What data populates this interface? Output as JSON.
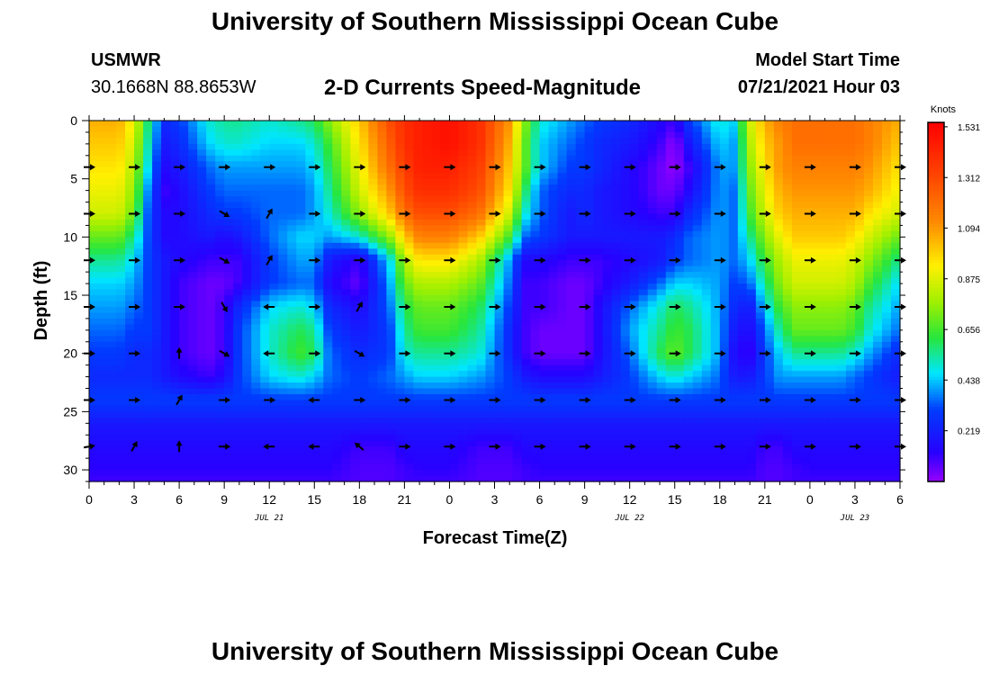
{
  "header": {
    "title": "University of Southern Mississippi Ocean Cube",
    "station": "USMWR",
    "coords": "30.1668N  88.8653W",
    "subtitle": "2-D Currents Speed-Magnitude",
    "model_start_label": "Model Start Time",
    "model_start_value": "07/21/2021 Hour 03"
  },
  "footer": {
    "title": "University of Southern Mississippi Ocean Cube"
  },
  "chart_data": {
    "type": "heatmap",
    "title": "2-D Currents Speed-Magnitude",
    "xlabel": "Forecast Time(Z)",
    "ylabel": "Depth (ft)",
    "x_ticks": [
      "0",
      "3",
      "6",
      "9",
      "12",
      "15",
      "18",
      "21",
      "0",
      "3",
      "6",
      "9",
      "12",
      "15",
      "18",
      "21",
      "0",
      "3",
      "6"
    ],
    "x_hours": [
      0,
      3,
      6,
      9,
      12,
      15,
      18,
      21,
      24,
      27,
      30,
      33,
      36,
      39,
      42,
      45,
      48,
      51,
      54
    ],
    "date_labels": [
      {
        "text": "JUL 21",
        "hour": 12
      },
      {
        "text": "JUL 22",
        "hour": 36
      },
      {
        "text": "JUL 23",
        "hour": 51
      }
    ],
    "y_ticks": [
      "0",
      "5",
      "10",
      "15",
      "20",
      "25",
      "30"
    ],
    "y_values": [
      0,
      5,
      10,
      15,
      20,
      25,
      30
    ],
    "xlim": [
      0,
      54
    ],
    "ylim": [
      0,
      31
    ],
    "colorbar": {
      "unit": "Knots",
      "min": 0.0,
      "max": 1.55,
      "ticks": [
        "1.531",
        "1.312",
        "1.094",
        "0.875",
        "0.656",
        "0.438",
        "0.219"
      ],
      "tick_values": [
        1.531,
        1.312,
        1.094,
        0.875,
        0.656,
        0.438,
        0.219
      ]
    },
    "arrow_rows_depth": [
      4,
      8,
      12,
      16,
      20,
      24,
      28
    ],
    "arrow_cols_hours": [
      0,
      3,
      6,
      9,
      12,
      15,
      18,
      21,
      24,
      27,
      30,
      33,
      36,
      39,
      42,
      45,
      48,
      51,
      54
    ],
    "arrow_directions_deg": [
      [
        0,
        0,
        0,
        0,
        0,
        0,
        0,
        0,
        0,
        0,
        0,
        0,
        0,
        0,
        0,
        0,
        0,
        0,
        0
      ],
      [
        0,
        0,
        0,
        30,
        -60,
        0,
        0,
        0,
        0,
        0,
        0,
        0,
        0,
        0,
        0,
        0,
        0,
        0,
        0
      ],
      [
        0,
        0,
        0,
        30,
        -60,
        0,
        0,
        0,
        0,
        0,
        0,
        0,
        0,
        0,
        0,
        0,
        0,
        0,
        0
      ],
      [
        0,
        0,
        0,
        60,
        180,
        0,
        -60,
        0,
        0,
        0,
        0,
        0,
        0,
        0,
        0,
        0,
        0,
        0,
        0
      ],
      [
        0,
        0,
        -90,
        30,
        180,
        0,
        30,
        0,
        0,
        0,
        0,
        0,
        0,
        0,
        0,
        0,
        0,
        0,
        0
      ],
      [
        0,
        0,
        -60,
        0,
        0,
        180,
        0,
        0,
        0,
        0,
        0,
        0,
        0,
        0,
        0,
        0,
        0,
        0,
        0
      ],
      [
        -10,
        -60,
        -90,
        0,
        180,
        180,
        220,
        0,
        0,
        0,
        0,
        0,
        0,
        0,
        0,
        0,
        0,
        0,
        0
      ]
    ],
    "speed_grid_knots": {
      "depths": [
        0,
        2,
        4,
        6,
        8,
        10,
        12,
        14,
        16,
        18,
        20,
        22,
        24,
        26,
        28,
        30,
        31
      ],
      "hours": [
        0,
        2,
        3,
        4,
        5,
        6,
        8,
        9,
        10,
        12,
        14,
        15,
        16,
        18,
        20,
        21,
        22,
        24,
        26,
        28,
        29,
        30,
        32,
        33,
        34,
        36,
        38,
        39,
        40,
        42,
        43,
        44,
        45,
        46,
        47,
        48,
        50,
        51,
        52,
        54
      ],
      "values": [
        [
          1.05,
          1.05,
          0.9,
          0.55,
          0.25,
          0.3,
          0.5,
          0.55,
          0.55,
          0.5,
          0.55,
          0.6,
          0.75,
          1.0,
          1.3,
          1.4,
          1.45,
          1.5,
          1.4,
          1.1,
          0.75,
          0.5,
          0.4,
          0.35,
          0.3,
          0.25,
          0.15,
          0.1,
          0.3,
          0.5,
          0.45,
          0.85,
          1.05,
          1.15,
          1.2,
          1.2,
          1.2,
          1.2,
          1.15,
          1.05
        ],
        [
          1.0,
          1.0,
          0.85,
          0.5,
          0.2,
          0.25,
          0.45,
          0.5,
          0.5,
          0.45,
          0.45,
          0.5,
          0.65,
          0.95,
          1.25,
          1.4,
          1.45,
          1.5,
          1.4,
          1.05,
          0.7,
          0.45,
          0.35,
          0.3,
          0.25,
          0.2,
          0.1,
          0.0,
          0.2,
          0.45,
          0.4,
          0.8,
          1.0,
          1.1,
          1.2,
          1.2,
          1.2,
          1.2,
          1.15,
          1.0
        ],
        [
          0.95,
          0.95,
          0.8,
          0.45,
          0.15,
          0.2,
          0.35,
          0.4,
          0.4,
          0.4,
          0.4,
          0.45,
          0.6,
          0.9,
          1.2,
          1.35,
          1.45,
          1.45,
          1.35,
          1.0,
          0.7,
          0.45,
          0.3,
          0.3,
          0.25,
          0.15,
          0.05,
          0.0,
          0.1,
          0.4,
          0.4,
          0.75,
          0.95,
          1.1,
          1.15,
          1.15,
          1.15,
          1.15,
          1.1,
          0.95
        ],
        [
          0.9,
          0.9,
          0.75,
          0.35,
          0.1,
          0.15,
          0.3,
          0.35,
          0.35,
          0.35,
          0.35,
          0.4,
          0.55,
          0.85,
          1.1,
          1.3,
          1.4,
          1.4,
          1.3,
          0.95,
          0.6,
          0.35,
          0.25,
          0.25,
          0.2,
          0.15,
          0.05,
          0.05,
          0.15,
          0.4,
          0.35,
          0.7,
          0.9,
          1.05,
          1.1,
          1.1,
          1.1,
          1.1,
          1.05,
          0.9
        ],
        [
          0.85,
          0.85,
          0.7,
          0.3,
          0.15,
          0.15,
          0.25,
          0.3,
          0.3,
          0.35,
          0.35,
          0.4,
          0.5,
          0.75,
          1.0,
          1.2,
          1.3,
          1.3,
          1.2,
          0.85,
          0.5,
          0.35,
          0.2,
          0.25,
          0.2,
          0.15,
          0.1,
          0.1,
          0.25,
          0.4,
          0.35,
          0.65,
          0.85,
          1.0,
          1.05,
          1.05,
          1.05,
          1.05,
          0.95,
          0.85
        ],
        [
          0.7,
          0.7,
          0.55,
          0.3,
          0.15,
          0.15,
          0.2,
          0.15,
          0.2,
          0.35,
          0.45,
          0.45,
          0.4,
          0.5,
          0.75,
          1.0,
          1.15,
          1.15,
          1.0,
          0.65,
          0.35,
          0.3,
          0.2,
          0.2,
          0.2,
          0.2,
          0.2,
          0.25,
          0.35,
          0.4,
          0.35,
          0.55,
          0.75,
          0.9,
          1.0,
          1.0,
          1.0,
          0.95,
          0.85,
          0.7
        ],
        [
          0.55,
          0.55,
          0.45,
          0.3,
          0.2,
          0.15,
          0.1,
          0.1,
          0.1,
          0.3,
          0.4,
          0.4,
          0.2,
          0.1,
          0.45,
          0.8,
          0.95,
          0.95,
          0.8,
          0.4,
          0.15,
          0.15,
          0.1,
          0.1,
          0.1,
          0.15,
          0.2,
          0.3,
          0.35,
          0.4,
          0.35,
          0.45,
          0.65,
          0.8,
          0.9,
          0.9,
          0.9,
          0.85,
          0.75,
          0.55
        ],
        [
          0.45,
          0.45,
          0.4,
          0.3,
          0.2,
          0.1,
          0.05,
          0.05,
          0.1,
          0.3,
          0.35,
          0.35,
          0.15,
          0.05,
          0.4,
          0.7,
          0.8,
          0.8,
          0.7,
          0.35,
          0.1,
          0.1,
          0.05,
          0.05,
          0.1,
          0.2,
          0.35,
          0.45,
          0.45,
          0.4,
          0.3,
          0.35,
          0.55,
          0.75,
          0.85,
          0.85,
          0.85,
          0.8,
          0.65,
          0.45
        ],
        [
          0.4,
          0.4,
          0.35,
          0.3,
          0.2,
          0.1,
          0.05,
          0.1,
          0.25,
          0.45,
          0.5,
          0.45,
          0.25,
          0.15,
          0.35,
          0.6,
          0.7,
          0.7,
          0.6,
          0.3,
          0.1,
          0.1,
          0.05,
          0.05,
          0.15,
          0.35,
          0.5,
          0.6,
          0.55,
          0.4,
          0.25,
          0.2,
          0.45,
          0.65,
          0.75,
          0.75,
          0.75,
          0.7,
          0.55,
          0.4
        ],
        [
          0.35,
          0.35,
          0.3,
          0.3,
          0.2,
          0.1,
          0.05,
          0.1,
          0.3,
          0.5,
          0.6,
          0.55,
          0.3,
          0.2,
          0.3,
          0.55,
          0.65,
          0.65,
          0.55,
          0.25,
          0.1,
          0.05,
          0.05,
          0.05,
          0.15,
          0.4,
          0.55,
          0.65,
          0.6,
          0.4,
          0.2,
          0.15,
          0.35,
          0.55,
          0.7,
          0.7,
          0.7,
          0.65,
          0.5,
          0.35
        ],
        [
          0.3,
          0.3,
          0.25,
          0.25,
          0.2,
          0.1,
          0.05,
          0.1,
          0.3,
          0.5,
          0.65,
          0.6,
          0.35,
          0.25,
          0.3,
          0.5,
          0.55,
          0.55,
          0.5,
          0.25,
          0.1,
          0.05,
          0.05,
          0.05,
          0.15,
          0.35,
          0.6,
          0.7,
          0.6,
          0.4,
          0.15,
          0.1,
          0.3,
          0.45,
          0.55,
          0.55,
          0.55,
          0.5,
          0.4,
          0.25
        ],
        [
          0.25,
          0.25,
          0.25,
          0.25,
          0.2,
          0.15,
          0.1,
          0.15,
          0.3,
          0.45,
          0.5,
          0.45,
          0.35,
          0.3,
          0.35,
          0.4,
          0.45,
          0.45,
          0.4,
          0.3,
          0.2,
          0.15,
          0.15,
          0.15,
          0.2,
          0.3,
          0.45,
          0.5,
          0.45,
          0.35,
          0.2,
          0.2,
          0.3,
          0.4,
          0.4,
          0.4,
          0.4,
          0.35,
          0.3,
          0.2
        ],
        [
          0.3,
          0.3,
          0.3,
          0.3,
          0.3,
          0.3,
          0.3,
          0.3,
          0.3,
          0.3,
          0.3,
          0.3,
          0.3,
          0.3,
          0.3,
          0.3,
          0.3,
          0.3,
          0.3,
          0.3,
          0.3,
          0.3,
          0.3,
          0.3,
          0.3,
          0.3,
          0.3,
          0.3,
          0.3,
          0.3,
          0.3,
          0.3,
          0.3,
          0.3,
          0.3,
          0.3,
          0.3,
          0.3,
          0.3,
          0.3
        ],
        [
          0.2,
          0.2,
          0.2,
          0.2,
          0.2,
          0.2,
          0.2,
          0.2,
          0.2,
          0.2,
          0.2,
          0.2,
          0.2,
          0.2,
          0.2,
          0.2,
          0.2,
          0.2,
          0.2,
          0.2,
          0.2,
          0.2,
          0.2,
          0.2,
          0.2,
          0.2,
          0.2,
          0.2,
          0.2,
          0.2,
          0.2,
          0.2,
          0.2,
          0.2,
          0.2,
          0.2,
          0.2,
          0.2,
          0.2,
          0.2
        ],
        [
          0.15,
          0.15,
          0.15,
          0.15,
          0.15,
          0.15,
          0.15,
          0.15,
          0.15,
          0.15,
          0.15,
          0.15,
          0.15,
          0.1,
          0.1,
          0.15,
          0.15,
          0.15,
          0.1,
          0.1,
          0.15,
          0.15,
          0.15,
          0.15,
          0.15,
          0.15,
          0.15,
          0.15,
          0.15,
          0.15,
          0.15,
          0.15,
          0.1,
          0.1,
          0.15,
          0.15,
          0.15,
          0.15,
          0.15,
          0.15
        ],
        [
          0.12,
          0.12,
          0.12,
          0.12,
          0.12,
          0.12,
          0.12,
          0.12,
          0.12,
          0.12,
          0.12,
          0.12,
          0.12,
          0.08,
          0.08,
          0.1,
          0.12,
          0.12,
          0.08,
          0.08,
          0.1,
          0.12,
          0.12,
          0.12,
          0.12,
          0.12,
          0.12,
          0.12,
          0.12,
          0.12,
          0.12,
          0.12,
          0.08,
          0.08,
          0.1,
          0.12,
          0.12,
          0.12,
          0.12,
          0.12
        ],
        [
          0.1,
          0.1,
          0.1,
          0.1,
          0.1,
          0.1,
          0.1,
          0.1,
          0.1,
          0.1,
          0.1,
          0.1,
          0.1,
          0.08,
          0.08,
          0.1,
          0.1,
          0.1,
          0.08,
          0.08,
          0.1,
          0.1,
          0.1,
          0.1,
          0.1,
          0.1,
          0.1,
          0.1,
          0.1,
          0.1,
          0.1,
          0.1,
          0.08,
          0.08,
          0.1,
          0.1,
          0.1,
          0.1,
          0.1,
          0.1
        ]
      ]
    }
  }
}
